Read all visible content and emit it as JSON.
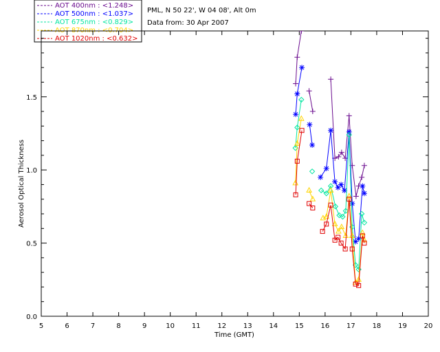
{
  "header": {
    "site_line": "PML, N 50 22', W 04 08', Alt 0m",
    "date_line": "Data from: 30 Apr 2007"
  },
  "chart_data": {
    "type": "line",
    "title": "",
    "xlabel": "Time (GMT)",
    "ylabel": "Aerosol Optical Thickness",
    "xlim": [
      5,
      20
    ],
    "ylim": [
      0,
      1.95
    ],
    "xticks": [
      "5",
      "6",
      "7",
      "8",
      "9",
      "10",
      "11",
      "12",
      "13",
      "14",
      "15",
      "16",
      "17",
      "18",
      "19",
      "20"
    ],
    "yticks": [
      "0.0",
      "0.5",
      "1.0",
      "1.5"
    ],
    "grid": false,
    "legend_position": "top-left",
    "series": [
      {
        "name": "AOT  400nm : <1.248>",
        "color": "#6a0b8e",
        "marker": "plus",
        "segments": [
          [
            [
              14.86,
              1.59
            ],
            [
              14.92,
              1.77
            ],
            [
              15.08,
              1.95
            ]
          ],
          [
            [
              15.38,
              1.54
            ],
            [
              15.52,
              1.4
            ]
          ],
          [
            [
              16.22,
              1.62
            ],
            [
              16.38,
              1.08
            ],
            [
              16.52,
              1.09
            ],
            [
              16.64,
              1.12
            ],
            [
              16.78,
              1.08
            ],
            [
              16.93,
              1.37
            ],
            [
              17.05,
              1.03
            ],
            [
              17.2,
              0.82
            ],
            [
              17.3,
              0.89
            ],
            [
              17.42,
              0.95
            ],
            [
              17.52,
              1.03
            ]
          ]
        ]
      },
      {
        "name": "AOT  500nm : <1.037>",
        "color": "#0000ff",
        "marker": "asterisk",
        "segments": [
          [
            [
              14.86,
              1.38
            ],
            [
              14.92,
              1.52
            ],
            [
              15.1,
              1.7
            ]
          ],
          [
            [
              15.4,
              1.31
            ],
            [
              15.5,
              1.17
            ]
          ],
          [
            [
              15.82,
              0.95
            ],
            [
              16.05,
              1.01
            ],
            [
              16.22,
              1.27
            ],
            [
              16.38,
              0.92
            ],
            [
              16.5,
              0.88
            ],
            [
              16.62,
              0.9
            ],
            [
              16.75,
              0.86
            ],
            [
              16.93,
              1.26
            ],
            [
              17.05,
              0.77
            ],
            [
              17.18,
              0.51
            ],
            [
              17.3,
              0.53
            ],
            [
              17.45,
              0.89
            ],
            [
              17.52,
              0.84
            ]
          ]
        ]
      },
      {
        "name": "AOT  675nm : <0.829>",
        "color": "#00e6a0",
        "marker": "diamond",
        "segments": [
          [
            [
              14.85,
              1.15
            ],
            [
              14.92,
              1.29
            ],
            [
              15.08,
              1.48
            ]
          ],
          [
            [
              15.5,
              0.99
            ]
          ],
          [
            [
              15.85,
              0.86
            ],
            [
              16.05,
              0.84
            ],
            [
              16.22,
              0.89
            ],
            [
              16.4,
              0.75
            ],
            [
              16.55,
              0.69
            ],
            [
              16.68,
              0.68
            ],
            [
              16.8,
              0.72
            ],
            [
              16.93,
              1.24
            ],
            [
              17.05,
              0.61
            ],
            [
              17.18,
              0.35
            ],
            [
              17.3,
              0.32
            ],
            [
              17.42,
              0.7
            ],
            [
              17.52,
              0.64
            ]
          ]
        ]
      },
      {
        "name": "AOT  870nm : <0.704>",
        "color": "#ffd400",
        "marker": "triangle",
        "segments": [
          [
            [
              14.85,
              0.91
            ],
            [
              14.92,
              1.18
            ],
            [
              15.08,
              1.35
            ]
          ],
          [
            [
              15.38,
              0.86
            ],
            [
              15.52,
              0.8
            ]
          ],
          [
            [
              15.92,
              0.67
            ],
            [
              16.05,
              0.68
            ],
            [
              16.22,
              0.86
            ],
            [
              16.38,
              0.63
            ],
            [
              16.52,
              0.58
            ],
            [
              16.64,
              0.61
            ],
            [
              16.8,
              0.55
            ],
            [
              16.93,
              0.82
            ],
            [
              17.05,
              0.55
            ],
            [
              17.18,
              0.23
            ],
            [
              17.3,
              0.25
            ],
            [
              17.45,
              0.57
            ],
            [
              17.52,
              0.52
            ]
          ]
        ]
      },
      {
        "name": "AOT 1020nm : <0.632>",
        "color": "#e00000",
        "marker": "square",
        "segments": [
          [
            [
              14.86,
              0.83
            ],
            [
              14.92,
              1.06
            ],
            [
              15.1,
              1.27
            ]
          ],
          [
            [
              15.38,
              0.77
            ],
            [
              15.52,
              0.74
            ]
          ],
          [
            [
              15.9,
              0.58
            ],
            [
              16.05,
              0.63
            ],
            [
              16.22,
              0.76
            ],
            [
              16.38,
              0.52
            ],
            [
              16.5,
              0.54
            ],
            [
              16.62,
              0.5
            ],
            [
              16.78,
              0.46
            ],
            [
              16.93,
              0.8
            ],
            [
              17.05,
              0.46
            ],
            [
              17.18,
              0.22
            ],
            [
              17.3,
              0.21
            ],
            [
              17.45,
              0.55
            ],
            [
              17.52,
              0.5
            ]
          ]
        ]
      }
    ]
  }
}
